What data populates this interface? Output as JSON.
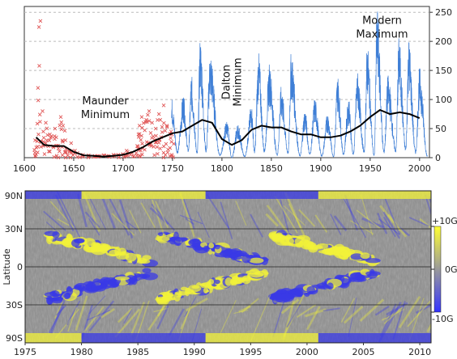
{
  "chart_data": [
    {
      "type": "line",
      "title": "",
      "xlabel": "",
      "ylabel": "",
      "xlim": [
        1600,
        2010
      ],
      "ylim": [
        0,
        260
      ],
      "x_ticks": [
        1600,
        1650,
        1700,
        1750,
        1800,
        1850,
        1900,
        1950,
        2000
      ],
      "y_ticks": [
        0,
        50,
        100,
        150,
        200,
        250
      ],
      "y_axis_side": "right",
      "grid": "horizontal dashed",
      "annotations": [
        {
          "lines": [
            "Maunder",
            "Minimum"
          ],
          "x": 1682,
          "y": 92
        },
        {
          "lines": [
            "Dalton",
            "Minimum"
          ],
          "x": 1808,
          "y": 130,
          "rotated": true
        },
        {
          "lines": [
            "Modern",
            "Maximum"
          ],
          "x": 1962,
          "y": 230
        }
      ],
      "series": [
        {
          "style": "red-x-markers",
          "x": [
            1611,
            1613,
            1615,
            1617,
            1620,
            1623,
            1626,
            1630,
            1633,
            1637,
            1640,
            1643,
            1647,
            1650,
            1655,
            1660,
            1665,
            1670,
            1675,
            1680,
            1685,
            1690,
            1695,
            1700,
            1703,
            1706,
            1710,
            1713,
            1716,
            1718,
            1720,
            1723,
            1726,
            1729,
            1732,
            1735,
            1738,
            1741,
            1744,
            1747,
            1750
          ],
          "values": [
            30,
            120,
            235,
            80,
            45,
            60,
            40,
            50,
            35,
            70,
            55,
            30,
            25,
            12,
            8,
            5,
            4,
            3,
            3,
            4,
            3,
            5,
            5,
            6,
            12,
            10,
            8,
            20,
            40,
            55,
            70,
            65,
            80,
            60,
            50,
            75,
            65,
            90,
            55,
            45,
            40
          ]
        },
        {
          "style": "blue-monthly",
          "x": [
            1749,
            1755,
            1761,
            1766,
            1769,
            1775,
            1778,
            1784,
            1788,
            1798,
            1805,
            1810,
            1816,
            1823,
            1830,
            1833,
            1837,
            1843,
            1848,
            1856,
            1860,
            1867,
            1870,
            1879,
            1884,
            1889,
            1894,
            1901,
            1907,
            1913,
            1917,
            1923,
            1928,
            1933,
            1937,
            1944,
            1947,
            1954,
            1957,
            1964,
            1968,
            1976,
            1979,
            1986,
            1989,
            1996,
            2000,
            2008
          ],
          "values": [
            80,
            10,
            85,
            12,
            110,
            8,
            160,
            12,
            140,
            4,
            50,
            0,
            45,
            2,
            70,
            10,
            140,
            12,
            125,
            5,
            95,
            8,
            140,
            3,
            65,
            6,
            80,
            3,
            60,
            2,
            110,
            6,
            80,
            6,
            115,
            10,
            150,
            4,
            200,
            10,
            110,
            12,
            160,
            14,
            160,
            9,
            120,
            2
          ]
        },
        {
          "name": "",
          "style": "black-smoothed",
          "x": [
            1612,
            1620,
            1630,
            1640,
            1650,
            1660,
            1670,
            1680,
            1690,
            1700,
            1710,
            1720,
            1730,
            1740,
            1750,
            1760,
            1770,
            1780,
            1790,
            1800,
            1810,
            1820,
            1830,
            1840,
            1850,
            1860,
            1870,
            1880,
            1890,
            1900,
            1910,
            1920,
            1930,
            1940,
            1950,
            1960,
            1970,
            1980,
            1990,
            2000
          ],
          "values": [
            35,
            22,
            20,
            20,
            10,
            4,
            3,
            2,
            3,
            5,
            10,
            18,
            28,
            35,
            42,
            45,
            55,
            65,
            60,
            32,
            22,
            30,
            48,
            55,
            52,
            52,
            45,
            40,
            40,
            35,
            35,
            38,
            45,
            55,
            70,
            82,
            75,
            78,
            75,
            68
          ]
        }
      ]
    },
    {
      "type": "heatmap",
      "title": "",
      "xlabel": "",
      "ylabel": "Latitude",
      "xlim": [
        1975,
        2011
      ],
      "x_ticks": [
        "1975",
        "1980",
        "1985",
        "1990",
        "1995",
        "2000",
        "2005",
        "2010"
      ],
      "y_ticks": [
        "90N",
        "30N",
        "0",
        "30S",
        "90S"
      ],
      "colorbar": {
        "ticks": [
          "+10G",
          "0G",
          "-10G"
        ],
        "colors": [
          "#ffff33",
          "#9a9a9a",
          "#3333ff"
        ]
      },
      "cycles_start": [
        1976,
        1986,
        1996
      ],
      "description_values": "magnetic butterfly diagram, sin-latitude scale"
    }
  ]
}
